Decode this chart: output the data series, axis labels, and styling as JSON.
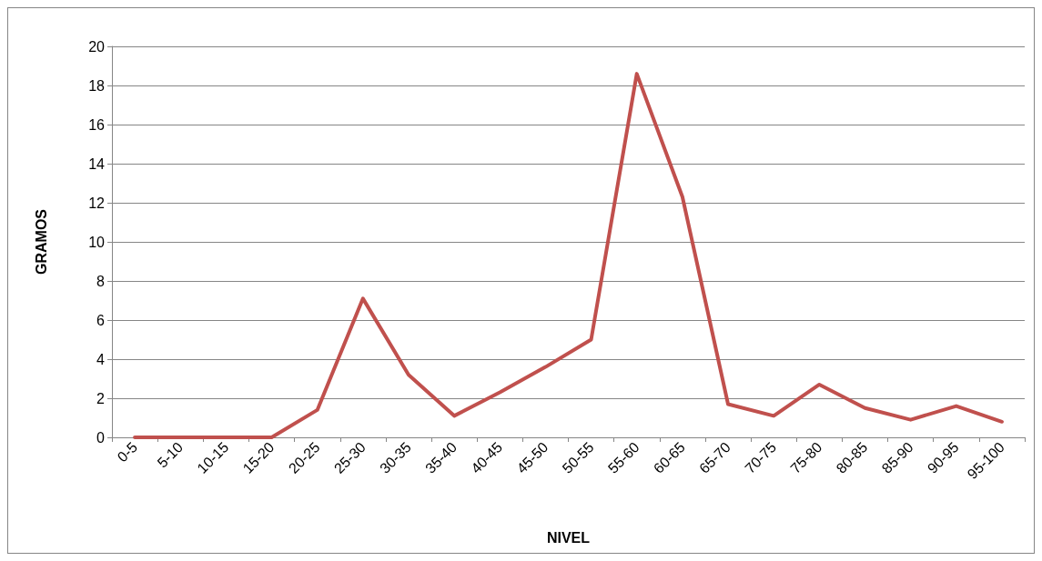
{
  "chart_data": {
    "type": "line",
    "xlabel": "NIVEL",
    "ylabel": "GRAMOS",
    "categories": [
      "0-5",
      "5-10",
      "10-15",
      "15-20",
      "20-25",
      "25-30",
      "30-35",
      "35-40",
      "40-45",
      "45-50",
      "50-55",
      "55-60",
      "60-65",
      "65-70",
      "70-75",
      "75-80",
      "80-85",
      "85-90",
      "90-95",
      "95-100"
    ],
    "series": [
      {
        "color": "#c0504d",
        "values": [
          0,
          0,
          0,
          0,
          1.4,
          7.1,
          3.2,
          1.1,
          2.3,
          3.6,
          5.0,
          18.6,
          12.3,
          1.7,
          1.1,
          2.7,
          1.5,
          0.9,
          1.6,
          0.8
        ]
      }
    ],
    "ylim": [
      0,
      20
    ],
    "yticks": [
      0,
      2,
      4,
      6,
      8,
      10,
      12,
      14,
      16,
      18,
      20
    ],
    "grid": "y",
    "marker": "none",
    "line_style": "solid"
  }
}
